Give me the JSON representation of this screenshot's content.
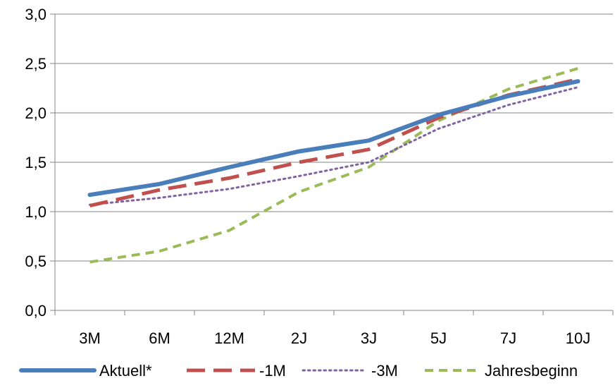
{
  "chart_data": {
    "type": "line",
    "title": "",
    "xlabel": "",
    "ylabel": "",
    "categories": [
      "3M",
      "6M",
      "12M",
      "2J",
      "3J",
      "5J",
      "7J",
      "10J"
    ],
    "ylim": [
      0,
      3
    ],
    "y_ticks": [
      "0,0",
      "0,5",
      "1,0",
      "1,5",
      "2,0",
      "2,5",
      "3,0"
    ],
    "grid": "horizontal",
    "legend_position": "bottom",
    "series": [
      {
        "name": "Aktuell*",
        "values": [
          1.17,
          1.28,
          1.45,
          1.61,
          1.72,
          1.98,
          2.17,
          2.32
        ],
        "color": "#4a7ebb",
        "style": "solid"
      },
      {
        "name": "-1M",
        "values": [
          1.06,
          1.22,
          1.34,
          1.5,
          1.63,
          1.95,
          2.18,
          2.34
        ],
        "color": "#c0504d",
        "style": "longdash"
      },
      {
        "name": "-3M",
        "values": [
          1.07,
          1.14,
          1.23,
          1.36,
          1.5,
          1.84,
          2.08,
          2.26
        ],
        "color": "#8064a2",
        "style": "dotted"
      },
      {
        "name": "Jahresbeginn",
        "values": [
          0.49,
          0.6,
          0.81,
          1.2,
          1.45,
          1.92,
          2.24,
          2.45
        ],
        "color": "#9bbb59",
        "style": "dash"
      }
    ]
  }
}
